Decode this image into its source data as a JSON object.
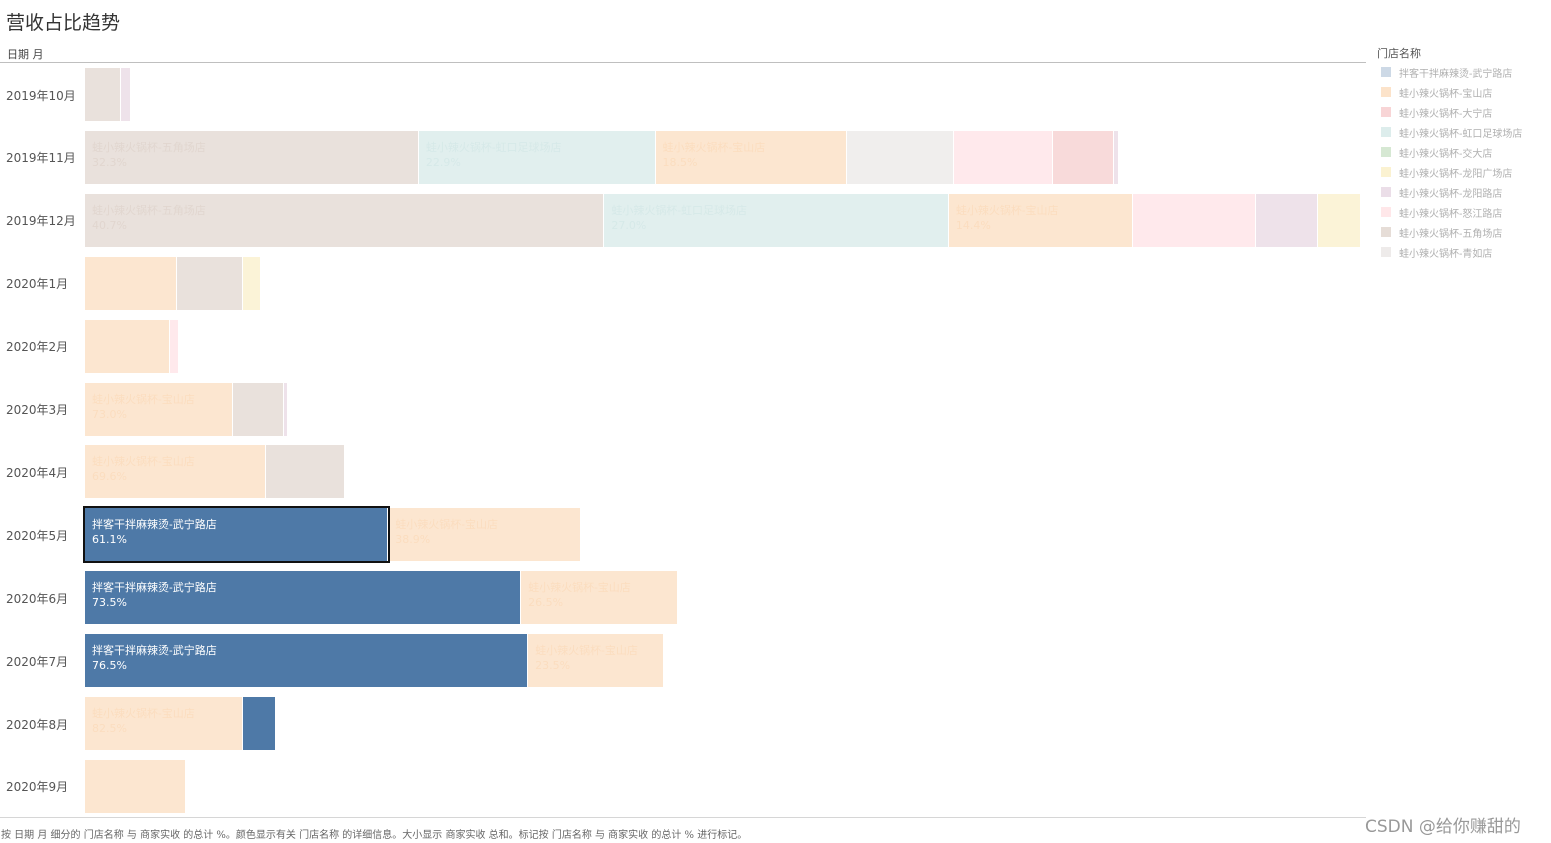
{
  "title": "营收占比趋势",
  "row_header": "日期 月",
  "caption": "按 日期 月 细分的 门店名称 与 商家实收 的总计 %。颜色显示有关 门店名称 的详细信息。大小显示 商家实收 总和。标记按 门店名称 与 商家实收 的总计 % 进行标记。",
  "watermark": "CSDN @给你赚甜的",
  "legend": {
    "title": "门店名称",
    "items": [
      {
        "label": "拌客干拌麻辣烫-武宁路店",
        "color": "#4e79a7"
      },
      {
        "label": "蛙小辣火锅杯-宝山店",
        "color": "#f28e2b"
      },
      {
        "label": "蛙小辣火锅杯-大宁店",
        "color": "#e15759"
      },
      {
        "label": "蛙小辣火锅杯-虹口足球场店",
        "color": "#76b7b2"
      },
      {
        "label": "蛙小辣火锅杯-交大店",
        "color": "#59a14f"
      },
      {
        "label": "蛙小辣火锅杯-龙阳广场店",
        "color": "#edc948"
      },
      {
        "label": "蛙小辣火锅杯-龙阳路店",
        "color": "#b07aa1"
      },
      {
        "label": "蛙小辣火锅杯-怒江路店",
        "color": "#ff9da7"
      },
      {
        "label": "蛙小辣火锅杯-五角场店",
        "color": "#9c755f"
      },
      {
        "label": "蛙小辣火锅杯-青如店",
        "color": "#bab0ac"
      }
    ]
  },
  "chart_data": {
    "type": "bar",
    "subtype": "stacked horizontal bars, width = total revenue, segments = percent of total per store",
    "title": "营收占比趋势",
    "ylabel": "日期 月",
    "highlight_series": "拌客干拌麻辣烫-武宁路店",
    "selected": {
      "row": "2020年5月",
      "series": "拌客干拌麻辣烫-武宁路店"
    },
    "rows": [
      {
        "label": "2019年10月",
        "total": 3.6,
        "segments": [
          {
            "series": "蛙小辣火锅杯-五角场店",
            "value": 78
          },
          {
            "series": "蛙小辣火锅杯-龙阳路店",
            "value": 22
          }
        ]
      },
      {
        "label": "2019年11月",
        "total": 81,
        "segments": [
          {
            "series": "蛙小辣火锅杯-五角场店",
            "value": 32.3,
            "label": "蛙小辣火锅杯-五角场店",
            "pct": "32.3%"
          },
          {
            "series": "蛙小辣火锅杯-虹口足球场店",
            "value": 22.9,
            "label": "蛙小辣火锅杯-虹口足球场店",
            "pct": "22.9%"
          },
          {
            "series": "蛙小辣火锅杯-宝山店",
            "value": 18.5,
            "label": "蛙小辣火锅杯-宝山店",
            "pct": "18.5%"
          },
          {
            "series": "蛙小辣火锅杯-青如店",
            "value": 10.4
          },
          {
            "series": "蛙小辣火锅杯-怒江路店",
            "value": 9.6
          },
          {
            "series": "蛙小辣火锅杯-大宁店",
            "value": 5.9
          },
          {
            "series": "蛙小辣火锅杯-龙阳路店",
            "value": 0.4
          }
        ]
      },
      {
        "label": "2019年12月",
        "total": 100,
        "segments": [
          {
            "series": "蛙小辣火锅杯-五角场店",
            "value": 40.7,
            "label": "蛙小辣火锅杯-五角场店",
            "pct": "40.7%"
          },
          {
            "series": "蛙小辣火锅杯-虹口足球场店",
            "value": 27.0,
            "label": "蛙小辣火锅杯-虹口足球场店",
            "pct": "27.0%"
          },
          {
            "series": "蛙小辣火锅杯-宝山店",
            "value": 14.4,
            "label": "蛙小辣火锅杯-宝山店",
            "pct": "14.4%"
          },
          {
            "series": "蛙小辣火锅杯-怒江路店",
            "value": 9.7
          },
          {
            "series": "蛙小辣火锅杯-龙阳路店",
            "value": 4.8
          },
          {
            "series": "蛙小辣火锅杯-龙阳广场店",
            "value": 3.4
          }
        ]
      },
      {
        "label": "2020年1月",
        "total": 13.8,
        "segments": [
          {
            "series": "蛙小辣火锅杯-宝山店",
            "value": 52
          },
          {
            "series": "蛙小辣火锅杯-五角场店",
            "value": 38
          },
          {
            "series": "蛙小辣火锅杯-龙阳广场店",
            "value": 10
          }
        ]
      },
      {
        "label": "2020年2月",
        "total": 7.4,
        "segments": [
          {
            "series": "蛙小辣火锅杯-宝山店",
            "value": 90
          },
          {
            "series": "蛙小辣火锅杯-怒江路店",
            "value": 10
          }
        ]
      },
      {
        "label": "2020年3月",
        "total": 15.9,
        "segments": [
          {
            "series": "蛙小辣火锅杯-宝山店",
            "value": 73.0,
            "label": "蛙小辣火锅杯-宝山店",
            "pct": "73.0%"
          },
          {
            "series": "蛙小辣火锅杯-五角场店",
            "value": 25
          },
          {
            "series": "蛙小辣火锅杯-龙阳路店",
            "value": 2
          }
        ]
      },
      {
        "label": "2020年4月",
        "total": 20.4,
        "segments": [
          {
            "series": "蛙小辣火锅杯-宝山店",
            "value": 69.6,
            "label": "蛙小辣火锅杯-宝山店",
            "pct": "69.6%"
          },
          {
            "series": "蛙小辣火锅杯-五角场店",
            "value": 30.4
          }
        ]
      },
      {
        "label": "2020年5月",
        "total": 38.9,
        "segments": [
          {
            "series": "拌客干拌麻辣烫-武宁路店",
            "value": 61.1,
            "label": "拌客干拌麻辣烫-武宁路店",
            "pct": "61.1%"
          },
          {
            "series": "蛙小辣火锅杯-宝山店",
            "value": 38.9,
            "label": "蛙小辣火锅杯-宝山店",
            "pct": "38.9%"
          }
        ]
      },
      {
        "label": "2020年6月",
        "total": 46.5,
        "segments": [
          {
            "series": "拌客干拌麻辣烫-武宁路店",
            "value": 73.5,
            "label": "拌客干拌麻辣烫-武宁路店",
            "pct": "73.5%"
          },
          {
            "series": "蛙小辣火锅杯-宝山店",
            "value": 26.5,
            "label": "蛙小辣火锅杯-宝山店",
            "pct": "26.5%"
          }
        ]
      },
      {
        "label": "2020年7月",
        "total": 45.4,
        "segments": [
          {
            "series": "拌客干拌麻辣烫-武宁路店",
            "value": 76.5,
            "label": "拌客干拌麻辣烫-武宁路店",
            "pct": "76.5%"
          },
          {
            "series": "蛙小辣火锅杯-宝山店",
            "value": 23.5,
            "label": "蛙小辣火锅杯-宝山店",
            "pct": "23.5%"
          }
        ]
      },
      {
        "label": "2020年8月",
        "total": 15.0,
        "segments": [
          {
            "series": "蛙小辣火锅杯-宝山店",
            "value": 82.5,
            "label": "蛙小辣火锅杯-宝山店",
            "pct": "82.5%"
          },
          {
            "series": "拌客干拌麻辣烫-武宁路店",
            "value": 17.5
          }
        ]
      },
      {
        "label": "2020年9月",
        "total": 7.9,
        "segments": [
          {
            "series": "蛙小辣火锅杯-宝山店",
            "value": 100
          }
        ]
      }
    ]
  }
}
